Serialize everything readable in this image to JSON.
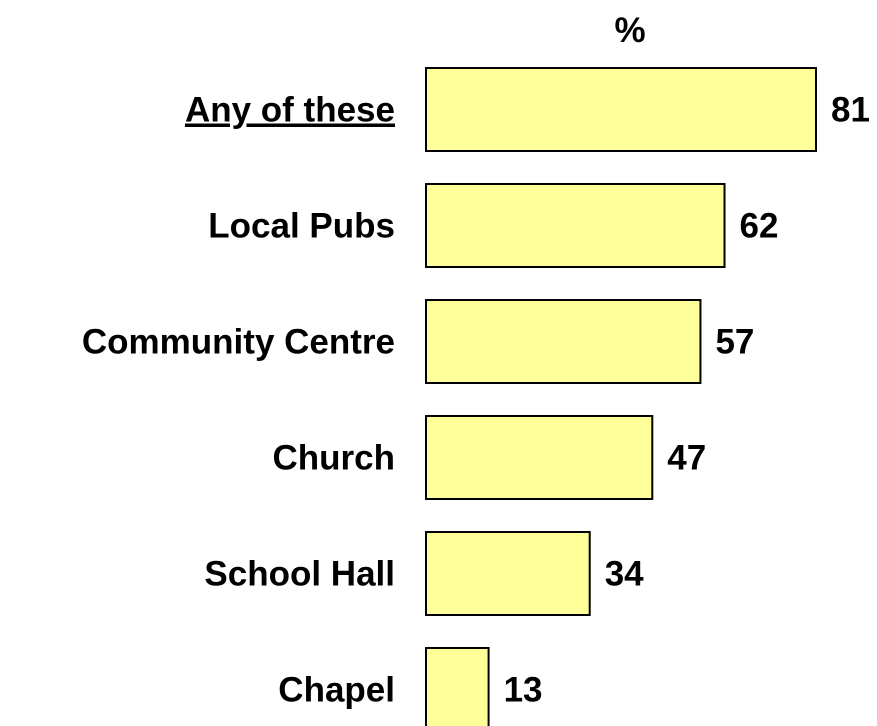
{
  "chart_data": {
    "type": "bar",
    "orientation": "horizontal",
    "unit_label": "%",
    "categories": [
      "Any of these",
      "Local Pubs",
      "Community Centre",
      "Church",
      "School Hall",
      "Chapel"
    ],
    "values": [
      81,
      62,
      57,
      47,
      34,
      13
    ],
    "underlined_categories": [
      "Any of these"
    ],
    "bar_color": "#ffff99",
    "bar_outline_color": "#000000",
    "text_color": "#000000",
    "xlim": [
      0,
      81
    ],
    "grid": false,
    "legend": "none",
    "title": "",
    "xlabel": "",
    "ylabel": ""
  }
}
